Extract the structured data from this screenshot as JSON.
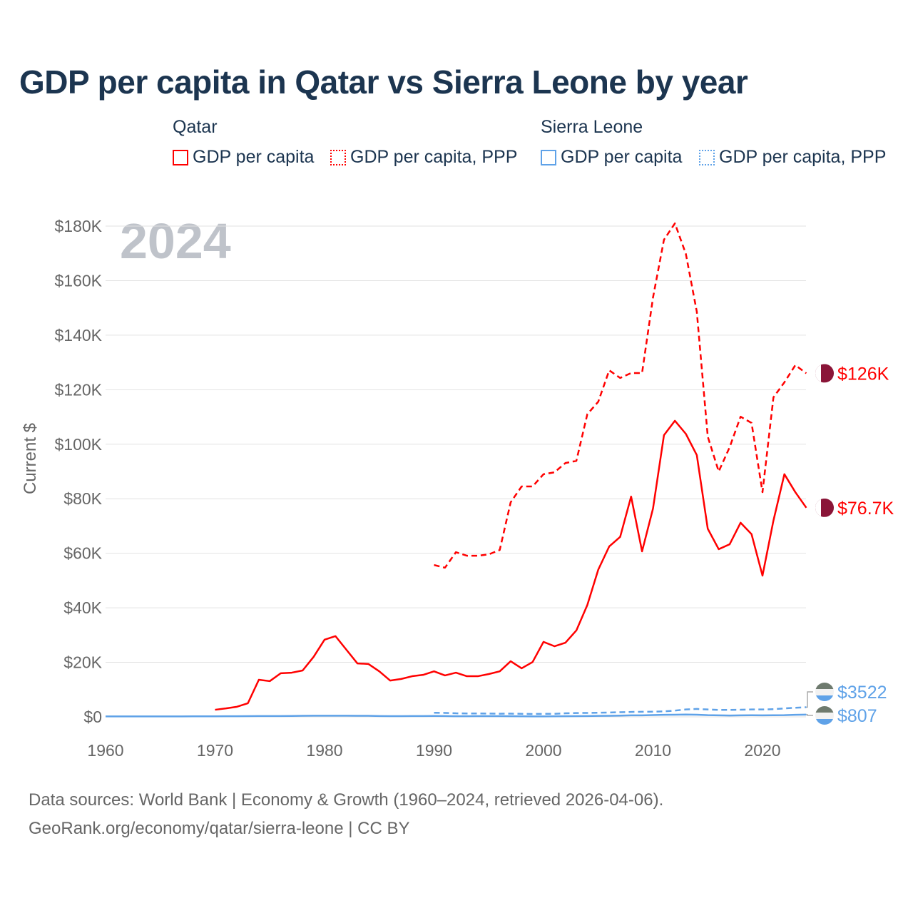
{
  "title": "GDP per capita in Qatar vs Sierra Leone by year",
  "legend": {
    "groups": [
      {
        "name": "Qatar",
        "items": [
          "GDP per capita",
          "GDP per capita, PPP"
        ]
      },
      {
        "name": "Sierra Leone",
        "items": [
          "GDP per capita",
          "GDP per capita, PPP"
        ]
      }
    ]
  },
  "footer": {
    "line1": "Data sources: World Bank | Economy & Growth (1960–2024, retrieved 2026-04-06).",
    "line2": "GeoRank.org/economy/qatar/sierra-leone | CC BY"
  },
  "colors": {
    "qatar": "#ff0000",
    "sierra_leone": "#5fa2e8",
    "grid": "#e2e2e2",
    "axis_text": "#666666"
  },
  "chart_data": {
    "type": "line",
    "title": "GDP per capita in Qatar vs Sierra Leone by year",
    "year_watermark": "2024",
    "xlabel": "",
    "ylabel": "Current $",
    "xlim": [
      1960,
      2024
    ],
    "ylim": [
      0,
      180000
    ],
    "x_ticks": [
      "1960",
      "1970",
      "1980",
      "1990",
      "2000",
      "2010",
      "2020"
    ],
    "y_ticks": [
      "$0",
      "$20K",
      "$40K",
      "$60K",
      "$80K",
      "$100K",
      "$120K",
      "$140K",
      "$160K",
      "$180K"
    ],
    "grid": true,
    "series": [
      {
        "name": "Qatar GDP per capita",
        "color": "#ff0000",
        "dash": "solid",
        "start": 1970,
        "end_label": "$76.7K",
        "flag": "qatar",
        "values": [
          2600,
          3100,
          3700,
          5000,
          13600,
          13100,
          16000,
          16200,
          17000,
          22000,
          28300,
          29600,
          24600,
          19600,
          19400,
          16700,
          13300,
          13900,
          14900,
          15400,
          16700,
          15200,
          16200,
          14900,
          14900,
          15700,
          16700,
          20400,
          17800,
          20100,
          27500,
          25900,
          27200,
          31700,
          41000,
          54000,
          62500,
          66000,
          80800,
          60700,
          76400,
          103300,
          108600,
          103800,
          96000,
          69000,
          61500,
          63300,
          71200,
          67000,
          51800,
          72000,
          89000,
          82400,
          76700
        ]
      },
      {
        "name": "Qatar GDP per capita, PPP",
        "color": "#ff0000",
        "dash": "dashed",
        "start": 1990,
        "end_label": "$126K",
        "flag": "qatar",
        "values": [
          55700,
          54700,
          60400,
          59100,
          59100,
          59600,
          61200,
          78700,
          84500,
          84500,
          89000,
          89700,
          93100,
          93900,
          111000,
          115600,
          127100,
          124300,
          126100,
          126100,
          153800,
          175000,
          181000,
          169800,
          148600,
          102800,
          90000,
          98900,
          110100,
          107800,
          82400,
          117200,
          122700,
          129000,
          126000
        ]
      },
      {
        "name": "Sierra Leone GDP per capita",
        "color": "#5fa2e8",
        "dash": "solid",
        "start": 1960,
        "end_label": "$807",
        "flag": "sierra_leone",
        "values": [
          150,
          155,
          160,
          165,
          160,
          170,
          175,
          170,
          180,
          200,
          210,
          220,
          230,
          250,
          280,
          300,
          310,
          330,
          380,
          420,
          440,
          430,
          420,
          400,
          380,
          300,
          250,
          260,
          280,
          300,
          330,
          280,
          230,
          240,
          250,
          260,
          250,
          220,
          180,
          170,
          150,
          200,
          230,
          260,
          300,
          350,
          400,
          450,
          550,
          560,
          650,
          750,
          800,
          850,
          780,
          620,
          550,
          500,
          560,
          600,
          560,
          580,
          620,
          760,
          807
        ]
      },
      {
        "name": "Sierra Leone GDP per capita, PPP",
        "color": "#5fa2e8",
        "dash": "dashed",
        "start": 1990,
        "end_label": "$3522",
        "flag": "sierra_leone",
        "values": [
          1500,
          1450,
          1300,
          1250,
          1250,
          1200,
          1150,
          1180,
          1100,
          1050,
          1100,
          1120,
          1300,
          1400,
          1450,
          1500,
          1600,
          1700,
          1800,
          1850,
          1900,
          2000,
          2300,
          2700,
          2900,
          2700,
          2550,
          2550,
          2600,
          2700,
          2700,
          2800,
          3100,
          3350,
          3522
        ]
      }
    ]
  }
}
